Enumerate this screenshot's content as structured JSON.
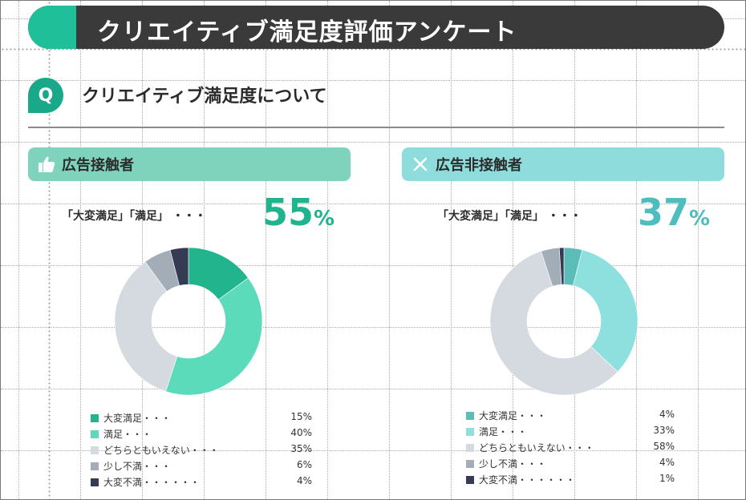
{
  "title": "クリエイティブ満足度評価アンケート",
  "question": {
    "badge": "Q",
    "text": "クリエイティブ満足度について"
  },
  "panels": [
    {
      "header": "広告接触者",
      "icon": "thumbs-up-icon",
      "header_color": "#7fd3bd",
      "satisfied_label": "「大変満足」「満足」 ・・・",
      "satisfied_value": "55",
      "satisfied_unit": "%",
      "pct_color": "#1fb38e"
    },
    {
      "header": "広告非接触者",
      "icon": "close-icon",
      "header_color": "#8fdcdc",
      "satisfied_label": "「大変満足」「満足」 ・・・",
      "satisfied_value": "37",
      "satisfied_unit": "%",
      "pct_color": "#4dbdbd"
    }
  ],
  "chart_data": [
    {
      "type": "pie",
      "variant": "donut",
      "title": "広告接触者",
      "categories": [
        "大変満足・・・",
        "満足・・・",
        "どちらともいえない・・・",
        "少し不満・・・",
        "大変不満・・・・・・"
      ],
      "values": [
        15,
        40,
        35,
        6,
        4
      ],
      "value_labels": [
        "15%",
        "40%",
        "35%",
        "6%",
        "4%"
      ],
      "colors": [
        "#22b48d",
        "#5cdbbb",
        "#d5d9e0",
        "#a3adb8",
        "#363b54"
      ],
      "legend": "bottom"
    },
    {
      "type": "pie",
      "variant": "donut",
      "title": "広告非接触者",
      "categories": [
        "大変満足・・・",
        "満足・・・",
        "どちらともいえない・・・",
        "少し不満・・・",
        "大変不満・・・・・・"
      ],
      "values": [
        4,
        33,
        58,
        4,
        1
      ],
      "value_labels": [
        "4%",
        "33%",
        "58%",
        "4%",
        "1%"
      ],
      "colors": [
        "#5bbcb8",
        "#8ee0de",
        "#d5d9e0",
        "#a3adb8",
        "#363b54"
      ],
      "legend": "bottom"
    }
  ]
}
